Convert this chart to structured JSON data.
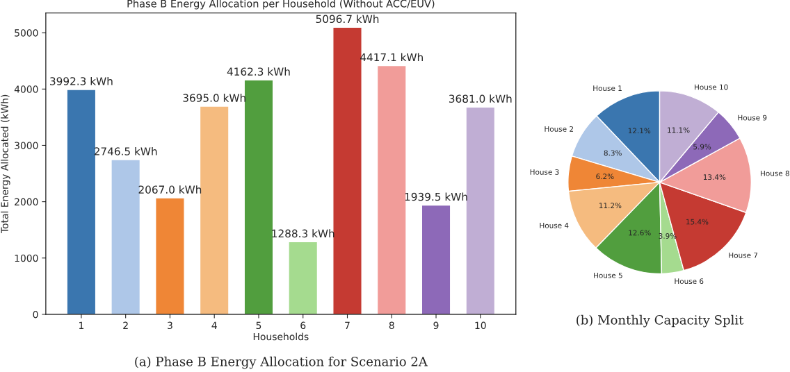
{
  "chart_data": [
    {
      "type": "bar",
      "title": "Phase B Energy Allocation per Household (Without ACC/EUV)",
      "xlabel": "Households",
      "ylabel": "Total Energy Allocated (kWh)",
      "categories": [
        "1",
        "2",
        "3",
        "4",
        "5",
        "6",
        "7",
        "8",
        "9",
        "10"
      ],
      "values": [
        3992.3,
        2746.5,
        2067.0,
        3695.0,
        4162.3,
        1288.3,
        5096.7,
        4417.1,
        1939.5,
        3681.0
      ],
      "value_labels": [
        "3992.3 kWh",
        "2746.5 kWh",
        "2067.0 kWh",
        "3695.0 kWh",
        "4162.3 kWh",
        "1288.3 kWh",
        "5096.7 kWh",
        "4417.1 kWh",
        "1939.5 kWh",
        "3681.0 kWh"
      ],
      "colors": [
        "#3a76af",
        "#aec7e8",
        "#ef8636",
        "#f5bb7f",
        "#519e3e",
        "#a5db8f",
        "#c53a32",
        "#f19c99",
        "#8d69b8",
        "#c0aed4"
      ],
      "ylim": [
        0,
        5350
      ],
      "yticks": [
        0,
        1000,
        2000,
        3000,
        4000,
        5000
      ],
      "grid": false,
      "legend": false,
      "annotations": [
        "(a) Phase B Energy Allocation for Scenario 2A"
      ]
    },
    {
      "type": "pie",
      "categories": [
        "House 1",
        "House 2",
        "House 3",
        "House 4",
        "House 5",
        "House 6",
        "House 7",
        "House 8",
        "House 9",
        "House 10"
      ],
      "values": [
        12.1,
        8.3,
        6.2,
        11.2,
        12.6,
        3.9,
        15.4,
        13.4,
        5.9,
        11.1
      ],
      "value_labels": [
        "12.1%",
        "8.3%",
        "6.2%",
        "11.2%",
        "12.6%",
        "3.9%",
        "15.4%",
        "13.4%",
        "5.9%",
        "11.1%"
      ],
      "colors": [
        "#3a76af",
        "#aec7e8",
        "#ef8636",
        "#f5bb7f",
        "#519e3e",
        "#a5db8f",
        "#c53a32",
        "#f19c99",
        "#8d69b8",
        "#c0aed4"
      ],
      "legend": false,
      "annotations": [
        "(b) Monthly Capacity Split"
      ]
    }
  ]
}
